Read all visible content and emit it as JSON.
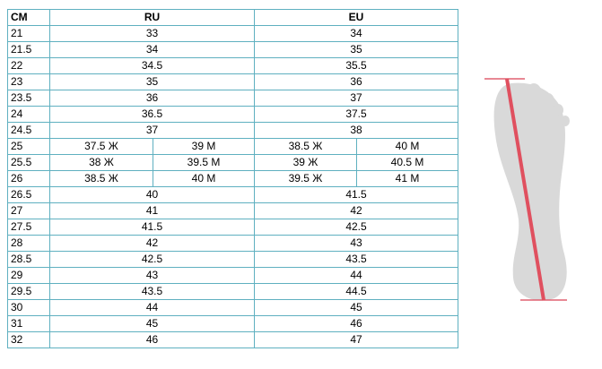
{
  "table": {
    "header": [
      "CM",
      "RU",
      "EU"
    ],
    "rows": [
      [
        "21",
        "33",
        "34"
      ],
      [
        "21.5",
        "34",
        "35"
      ],
      [
        "22",
        "34.5",
        "35.5"
      ],
      [
        "23",
        "35",
        "36"
      ],
      [
        "23.5",
        "36",
        "37"
      ],
      [
        "24",
        "36.5",
        "37.5"
      ],
      [
        "24.5",
        "37",
        "38"
      ],
      [
        "25",
        "37.5 Ж",
        "39 М",
        "38.5 Ж",
        "40 М"
      ],
      [
        "25.5",
        "38 Ж",
        "39.5 М",
        "39 Ж",
        "40.5 М"
      ],
      [
        "26",
        "38.5 Ж",
        "40 М",
        "39.5 Ж",
        "41 М"
      ],
      [
        "26.5",
        "40",
        "41.5"
      ],
      [
        "27",
        "41",
        "42"
      ],
      [
        "27.5",
        "41.5",
        "42.5"
      ],
      [
        "28",
        "42",
        "43"
      ],
      [
        "28.5",
        "42.5",
        "43.5"
      ],
      [
        "29",
        "43",
        "44"
      ],
      [
        "29.5",
        "43.5",
        "44.5"
      ],
      [
        "30",
        "44",
        "45"
      ],
      [
        "31",
        "45",
        "46"
      ],
      [
        "32",
        "46",
        "47"
      ]
    ]
  }
}
